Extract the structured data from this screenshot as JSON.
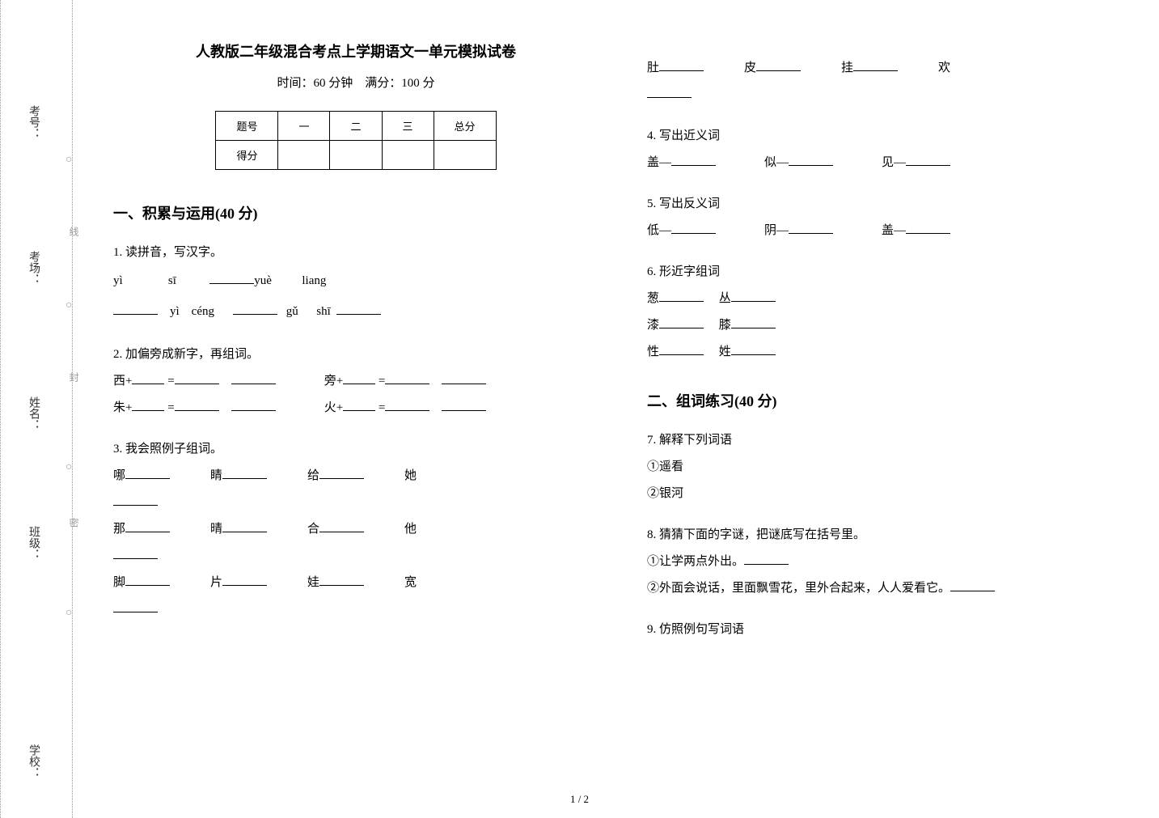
{
  "margin": {
    "labels": [
      "考号：",
      "考场：",
      "姓名：",
      "班级：",
      "学校："
    ],
    "seal_texts": [
      "线",
      "封",
      "密"
    ]
  },
  "header": {
    "title": "人教版二年级混合考点上学期语文一单元模拟试卷",
    "subtitle": "时间：60 分钟　满分：100 分"
  },
  "score_table": {
    "headers": [
      "题号",
      "一",
      "二",
      "三",
      "总分"
    ],
    "row2_label": "得分"
  },
  "section1": {
    "title": "一、积累与运用(40 分)",
    "q1": {
      "label": "1.  读拼音，写汉字。",
      "pinyins": [
        "yì",
        "sī",
        "yuè",
        "liang",
        "yì",
        "céng",
        "gǔ",
        "shī"
      ]
    },
    "q2": {
      "label": "2.  加偏旁成新字，再组词。",
      "items": [
        "西+",
        "旁+",
        "朱+",
        "火+"
      ]
    },
    "q3": {
      "label": "3.  我会照例子组词。",
      "chars": [
        "哪",
        "睛",
        "给",
        "她",
        "那",
        "晴",
        "合",
        "他",
        "脚",
        "片",
        "娃",
        "宽",
        "肚",
        "皮",
        "挂",
        "欢"
      ]
    },
    "q4": {
      "label": "4.  写出近义词",
      "items": [
        "盖—",
        "似—",
        "见—"
      ]
    },
    "q5": {
      "label": "5.  写出反义词",
      "items": [
        "低—",
        "阴—",
        "盖—"
      ]
    },
    "q6": {
      "label": "6.  形近字组词",
      "pairs": [
        [
          "葱",
          "丛"
        ],
        [
          "漆",
          "膝"
        ],
        [
          "性",
          "姓"
        ]
      ]
    }
  },
  "section2": {
    "title": "二、组词练习(40 分)",
    "q7": {
      "label": "7.  解释下列词语",
      "items": [
        "①遥看",
        "②银河"
      ]
    },
    "q8": {
      "label": "8.  猜猜下面的字谜，把谜底写在括号里。",
      "riddles": [
        "①让学两点外出。",
        "②外面会说话，里面飘雪花，里外合起来，人人爱看它。"
      ]
    },
    "q9": {
      "label": "9.  仿照例句写词语"
    }
  },
  "page": "1 / 2",
  "style": {
    "bg_color": "#ffffff",
    "text_color": "#000000",
    "title_fontsize": 18,
    "body_fontsize": 15
  }
}
